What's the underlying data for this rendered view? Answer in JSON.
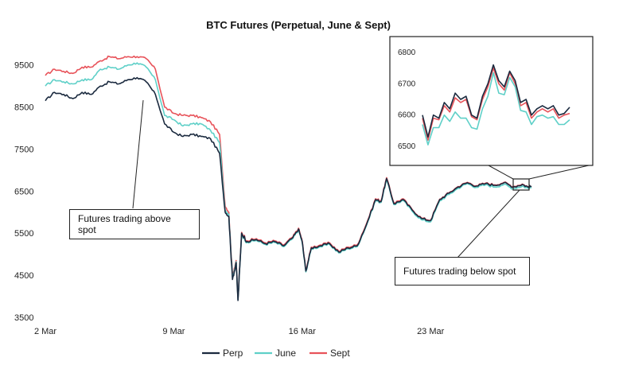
{
  "chart_data": {
    "type": "line",
    "title": "BTC Futures (Perpetual, June & Sept)",
    "xlabel": "",
    "ylabel": "",
    "x_ticks": [
      "2 Mar",
      "9 Mar",
      "16 Mar",
      "23 Mar"
    ],
    "y_ticks": [
      3500,
      4500,
      5500,
      6500,
      7500,
      8500,
      9500
    ],
    "ylim": [
      3500,
      10100
    ],
    "x_range_days": [
      2.0,
      28.5
    ],
    "grid": false,
    "legend_position": "bottom",
    "x": [
      2.0,
      2.5,
      3.0,
      3.5,
      4.0,
      4.5,
      5.0,
      5.5,
      6.0,
      6.5,
      7.0,
      7.5,
      8.0,
      8.5,
      9.0,
      9.5,
      10.0,
      10.5,
      11.0,
      11.5,
      11.8,
      12.0,
      12.2,
      12.4,
      12.5,
      12.7,
      13.0,
      13.5,
      14.0,
      14.5,
      15.0,
      15.5,
      15.8,
      16.0,
      16.2,
      16.5,
      17.0,
      17.5,
      18.0,
      18.5,
      19.0,
      19.5,
      20.0,
      20.3,
      20.6,
      21.0,
      21.5,
      22.0,
      22.5,
      23.0,
      23.5,
      24.0,
      24.5,
      25.0,
      25.5,
      26.0,
      26.5,
      27.0,
      27.5,
      28.0,
      28.3,
      28.5
    ],
    "series": [
      {
        "name": "Perp",
        "color": "#1b2a3f",
        "values": [
          8650,
          8850,
          8800,
          8700,
          8850,
          8800,
          9000,
          9100,
          9050,
          9150,
          9200,
          9100,
          8800,
          8100,
          7900,
          7800,
          7850,
          7800,
          7750,
          7400,
          6000,
          5900,
          4400,
          4800,
          3900,
          5500,
          5300,
          5350,
          5250,
          5300,
          5200,
          5400,
          5600,
          5300,
          4600,
          5150,
          5200,
          5250,
          5050,
          5150,
          5200,
          5700,
          6300,
          6250,
          6800,
          6200,
          6300,
          6050,
          5850,
          5800,
          6300,
          6450,
          6600,
          6700,
          6620,
          6680,
          6640,
          6700,
          6600,
          6660,
          6600,
          6620
        ]
      },
      {
        "name": "June",
        "color": "#5fd0c8",
        "values": [
          9000,
          9150,
          9100,
          9050,
          9150,
          9150,
          9400,
          9450,
          9400,
          9500,
          9550,
          9450,
          9150,
          8300,
          8200,
          8050,
          8100,
          8100,
          7950,
          7650,
          6050,
          5950,
          4450,
          4820,
          3920,
          5480,
          5280,
          5330,
          5230,
          5280,
          5180,
          5380,
          5580,
          5280,
          4580,
          5130,
          5180,
          5230,
          5030,
          5130,
          5180,
          5680,
          6280,
          6230,
          6770,
          6180,
          6280,
          6020,
          5820,
          5770,
          6270,
          6420,
          6570,
          6680,
          6590,
          6650,
          6600,
          6660,
          6560,
          6620,
          6570,
          6590
        ]
      },
      {
        "name": "Sept",
        "color": "#e8535a",
        "values": [
          9250,
          9400,
          9350,
          9300,
          9450,
          9450,
          9600,
          9700,
          9650,
          9700,
          9700,
          9650,
          9400,
          8500,
          8350,
          8300,
          8300,
          8250,
          8150,
          7850,
          6150,
          6000,
          4500,
          4850,
          3950,
          5520,
          5320,
          5370,
          5270,
          5320,
          5220,
          5420,
          5620,
          5320,
          4620,
          5170,
          5220,
          5270,
          5070,
          5170,
          5220,
          5720,
          6320,
          6270,
          6820,
          6220,
          6320,
          6060,
          5860,
          5810,
          6310,
          6460,
          6610,
          6710,
          6630,
          6690,
          6650,
          6710,
          6610,
          6670,
          6605,
          6610
        ]
      }
    ],
    "annotations": [
      {
        "text": "Futures trading above spot"
      },
      {
        "text": "Futures trading below spot"
      }
    ],
    "inset": {
      "y_ticks": [
        6500,
        6600,
        6700,
        6800
      ],
      "ylim": [
        6480,
        6820
      ],
      "series": [
        {
          "name": "Perp",
          "values": [
            6600,
            6530,
            6600,
            6590,
            6640,
            6620,
            6670,
            6650,
            6660,
            6600,
            6590,
            6660,
            6700,
            6760,
            6710,
            6690,
            6740,
            6710,
            6640,
            6650,
            6600,
            6620,
            6630,
            6620,
            6630,
            6600,
            6605,
            6625
          ]
        },
        {
          "name": "June",
          "values": [
            6570,
            6505,
            6560,
            6560,
            6600,
            6580,
            6610,
            6590,
            6590,
            6560,
            6555,
            6620,
            6660,
            6735,
            6670,
            6665,
            6720,
            6690,
            6615,
            6610,
            6570,
            6595,
            6600,
            6590,
            6595,
            6570,
            6570,
            6585
          ]
        },
        {
          "name": "Sept",
          "values": [
            6590,
            6520,
            6590,
            6585,
            6630,
            6610,
            6655,
            6640,
            6650,
            6595,
            6585,
            6650,
            6690,
            6750,
            6700,
            6680,
            6735,
            6700,
            6630,
            6640,
            6590,
            6610,
            6620,
            6610,
            6620,
            6590,
            6600,
            6605
          ]
        }
      ]
    }
  }
}
